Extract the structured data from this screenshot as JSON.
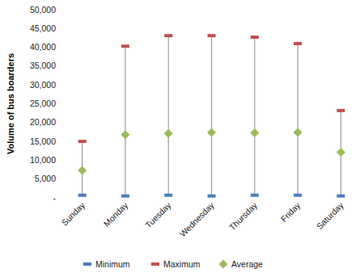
{
  "chart_data": {
    "type": "range",
    "y_label": "Volume of bus boarders",
    "categories": [
      "Sunday",
      "Monday",
      "Tuesday",
      "Wednesday",
      "Thursday",
      "Friday",
      "Saturday"
    ],
    "series": [
      {
        "name": "Minimum",
        "color": "#4a7ebb",
        "marker": "dash",
        "values": [
          700,
          500,
          700,
          500,
          700,
          700,
          500
        ]
      },
      {
        "name": "Maximum",
        "color": "#c0504d",
        "marker": "dash",
        "values": [
          15000,
          40300,
          43100,
          43100,
          42700,
          41000,
          23200
        ]
      },
      {
        "name": "Average",
        "color": "#9bbb59",
        "marker": "diamond",
        "values": [
          7300,
          16800,
          17100,
          17400,
          17300,
          17400,
          12100
        ]
      }
    ],
    "ylim": [
      0,
      50000
    ],
    "yticks": [
      {
        "value": 0,
        "label": "-"
      },
      {
        "value": 5000,
        "label": "5,000"
      },
      {
        "value": 10000,
        "label": "10,000"
      },
      {
        "value": 15000,
        "label": "15,000"
      },
      {
        "value": 20000,
        "label": "20,000"
      },
      {
        "value": 25000,
        "label": "25,000"
      },
      {
        "value": 30000,
        "label": "30,000"
      },
      {
        "value": 35000,
        "label": "35,000"
      },
      {
        "value": 40000,
        "label": "40,000"
      },
      {
        "value": 45000,
        "label": "45,000"
      },
      {
        "value": 50000,
        "label": "50,000"
      }
    ],
    "grid": false,
    "legend": "bottom"
  }
}
